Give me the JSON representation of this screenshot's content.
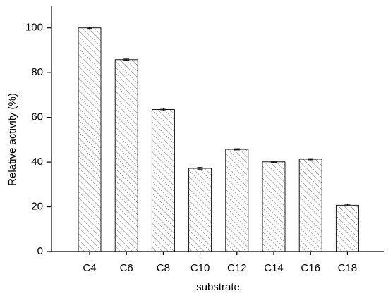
{
  "chart_data": {
    "type": "bar",
    "categories": [
      "C4",
      "C6",
      "C8",
      "C10",
      "C12",
      "C14",
      "C16",
      "C18"
    ],
    "values": [
      100,
      85.8,
      63.5,
      37.2,
      45.7,
      40.1,
      41.3,
      20.7
    ],
    "errors": [
      0.3,
      0.3,
      0.5,
      0.4,
      0.3,
      0.3,
      0.3,
      0.4
    ],
    "color": "#555555",
    "xlabel": "substrate",
    "ylabel": "Relative activity (%)",
    "ylim": [
      0,
      110
    ],
    "yticks": [
      0,
      20,
      40,
      60,
      80,
      100
    ]
  }
}
